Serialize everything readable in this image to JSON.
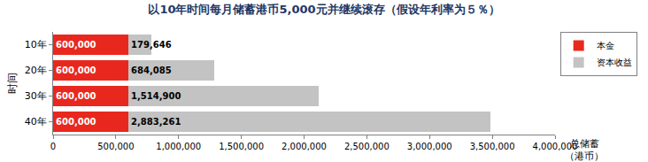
{
  "chart_data": {
    "type": "bar",
    "title": "以10年时间每月储蓄港币5,000元并继续滚存（假设年利率为５％）",
    "orientation": "horizontal",
    "stacked": true,
    "data_labels": true,
    "legend": "top right",
    "grid": false,
    "y_label": "时间",
    "x_label": "总储蓄\n（港币）",
    "categories": [
      "10年",
      "20年",
      "30年",
      "40年"
    ],
    "series": [
      {
        "name": "本金",
        "color": "#e8281e",
        "values": [
          600000,
          600000,
          600000,
          600000
        ],
        "value_labels": [
          "600,000",
          "600,000",
          "600,000",
          "600,000"
        ]
      },
      {
        "name": "资本收益",
        "color": "#c3c3c3",
        "values": [
          179646,
          684085,
          1514900,
          2883261
        ],
        "value_labels": [
          "179,646",
          "684,085",
          "1,514,900",
          "2,883,261"
        ]
      }
    ],
    "xlim": [
      0,
      4000000
    ],
    "xticks": [
      0,
      {
        "value": 500000,
        "label": "500,000"
      },
      {
        "value": 1000000,
        "label": "1,000,000"
      },
      {
        "value": 1500000,
        "label": "1,500,000"
      },
      {
        "value": 2000000,
        "label": "2,000,000"
      },
      {
        "value": 2500000,
        "label": "2,500,000"
      },
      {
        "value": 3000000,
        "label": "3,000,000"
      },
      {
        "value": 3500000,
        "label": "3,500,000"
      },
      {
        "value": 4000000,
        "label": "4,000,000"
      }
    ]
  }
}
